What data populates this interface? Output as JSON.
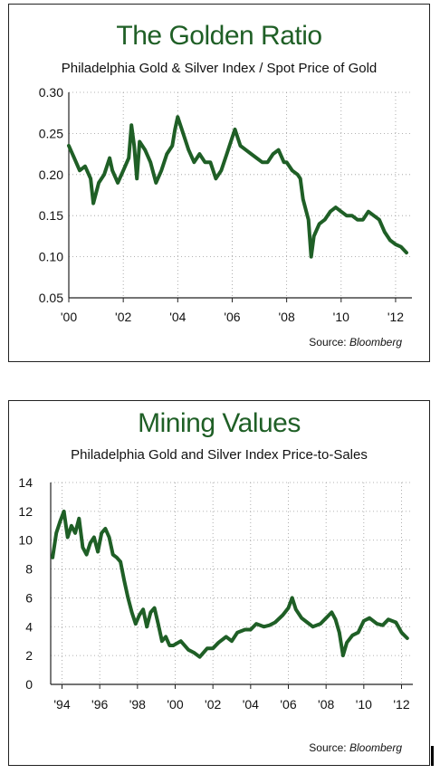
{
  "colors": {
    "line": "#1f5f26",
    "title": "#1f5f26",
    "grid": "#9a9a9a",
    "frame": "#222222"
  },
  "chart_data": [
    {
      "type": "line",
      "title": "The Golden Ratio",
      "subtitle": "Philadelphia Gold & Silver Index / Spot Price of Gold",
      "source_label": "Source:",
      "source_name": "Bloomberg",
      "xlabel": "",
      "ylabel": "",
      "ylim": [
        0.05,
        0.3
      ],
      "xlim": [
        2000.0,
        2012.6
      ],
      "yticks": [
        0.3,
        0.25,
        0.2,
        0.15,
        0.1,
        0.05
      ],
      "ytick_labels": [
        "0.30",
        "0.25",
        "0.20",
        "0.15",
        "0.10",
        "0.05"
      ],
      "xticks": [
        2000,
        2002,
        2004,
        2006,
        2008,
        2010,
        2012
      ],
      "xtick_labels": [
        "'00",
        "'02",
        "'04",
        "'06",
        "'08",
        "'10",
        "'12"
      ],
      "grid": true,
      "series": [
        {
          "x": [
            2000.0,
            2000.2,
            2000.4,
            2000.6,
            2000.8,
            2000.9,
            2001.1,
            2001.3,
            2001.5,
            2001.6,
            2001.8,
            2002.0,
            2002.2,
            2002.3,
            2002.4,
            2002.5,
            2002.6,
            2002.8,
            2003.0,
            2003.2,
            2003.4,
            2003.6,
            2003.8,
            2003.9,
            2004.0,
            2004.2,
            2004.4,
            2004.6,
            2004.8,
            2005.0,
            2005.2,
            2005.4,
            2005.6,
            2005.8,
            2006.0,
            2006.1,
            2006.3,
            2006.5,
            2006.7,
            2006.9,
            2007.1,
            2007.3,
            2007.5,
            2007.7,
            2007.9,
            2008.0,
            2008.2,
            2008.4,
            2008.5,
            2008.6,
            2008.8,
            2008.9,
            2009.0,
            2009.2,
            2009.4,
            2009.6,
            2009.8,
            2010.0,
            2010.2,
            2010.4,
            2010.6,
            2010.8,
            2011.0,
            2011.2,
            2011.4,
            2011.6,
            2011.8,
            2012.0,
            2012.2,
            2012.4
          ],
          "y": [
            0.235,
            0.22,
            0.205,
            0.21,
            0.195,
            0.165,
            0.19,
            0.2,
            0.22,
            0.205,
            0.19,
            0.205,
            0.22,
            0.26,
            0.235,
            0.195,
            0.24,
            0.23,
            0.215,
            0.19,
            0.205,
            0.225,
            0.235,
            0.255,
            0.27,
            0.25,
            0.23,
            0.215,
            0.225,
            0.215,
            0.215,
            0.195,
            0.205,
            0.225,
            0.245,
            0.255,
            0.235,
            0.23,
            0.225,
            0.22,
            0.215,
            0.215,
            0.225,
            0.23,
            0.215,
            0.215,
            0.205,
            0.2,
            0.195,
            0.17,
            0.145,
            0.1,
            0.125,
            0.14,
            0.145,
            0.155,
            0.16,
            0.155,
            0.15,
            0.15,
            0.145,
            0.145,
            0.155,
            0.15,
            0.145,
            0.13,
            0.12,
            0.115,
            0.112,
            0.105
          ]
        }
      ]
    },
    {
      "type": "line",
      "title": "Mining Values",
      "subtitle": "Philadelphia Gold and Silver Index Price-to-Sales",
      "source_label": "Source:",
      "source_name": "Bloomberg",
      "xlabel": "",
      "ylabel": "",
      "ylim": [
        0,
        14
      ],
      "xlim": [
        1993.4,
        2012.6
      ],
      "yticks": [
        14,
        12,
        10,
        8,
        6,
        4,
        2,
        0
      ],
      "ytick_labels": [
        "14",
        "12",
        "10",
        "8",
        "6",
        "4",
        "2",
        "0"
      ],
      "xticks": [
        1994,
        1996,
        1998,
        2000,
        2002,
        2004,
        2006,
        2008,
        2010,
        2012
      ],
      "xtick_labels": [
        "'94",
        "'96",
        "'98",
        "'00",
        "'02",
        "'04",
        "'06",
        "'08",
        "'10",
        "'12"
      ],
      "grid": true,
      "series": [
        {
          "x": [
            1993.5,
            1993.7,
            1993.9,
            1994.1,
            1994.3,
            1994.5,
            1994.7,
            1994.9,
            1995.1,
            1995.3,
            1995.5,
            1995.7,
            1995.9,
            1996.1,
            1996.3,
            1996.5,
            1996.7,
            1996.9,
            1997.1,
            1997.3,
            1997.5,
            1997.7,
            1997.9,
            1998.1,
            1998.3,
            1998.5,
            1998.7,
            1998.9,
            1999.1,
            1999.3,
            1999.5,
            1999.7,
            1999.9,
            2000.3,
            2000.7,
            2001.0,
            2001.3,
            2001.7,
            2002.0,
            2002.3,
            2002.7,
            2003.0,
            2003.3,
            2003.7,
            2004.0,
            2004.3,
            2004.7,
            2005.0,
            2005.3,
            2005.7,
            2006.0,
            2006.2,
            2006.4,
            2006.7,
            2007.0,
            2007.3,
            2007.7,
            2008.0,
            2008.3,
            2008.5,
            2008.7,
            2008.9,
            2009.1,
            2009.4,
            2009.7,
            2010.0,
            2010.3,
            2010.7,
            2011.0,
            2011.3,
            2011.7,
            2012.0,
            2012.3
          ],
          "y": [
            8.8,
            10.5,
            11.3,
            12.0,
            10.2,
            11.0,
            10.5,
            11.5,
            9.5,
            9.0,
            9.8,
            10.2,
            9.2,
            10.5,
            10.8,
            10.2,
            9.0,
            8.8,
            8.5,
            7.2,
            6.0,
            5.0,
            4.2,
            4.8,
            5.2,
            4.0,
            5.0,
            5.3,
            4.2,
            3.0,
            3.3,
            2.7,
            2.7,
            3.0,
            2.4,
            2.2,
            1.9,
            2.5,
            2.5,
            2.9,
            3.3,
            3.0,
            3.6,
            3.8,
            3.8,
            4.2,
            4.0,
            4.1,
            4.3,
            4.8,
            5.3,
            6.0,
            5.2,
            4.6,
            4.3,
            4.0,
            4.2,
            4.6,
            5.0,
            4.5,
            3.6,
            2.0,
            2.9,
            3.4,
            3.6,
            4.4,
            4.6,
            4.2,
            4.1,
            4.5,
            4.3,
            3.6,
            3.2
          ]
        }
      ]
    }
  ]
}
